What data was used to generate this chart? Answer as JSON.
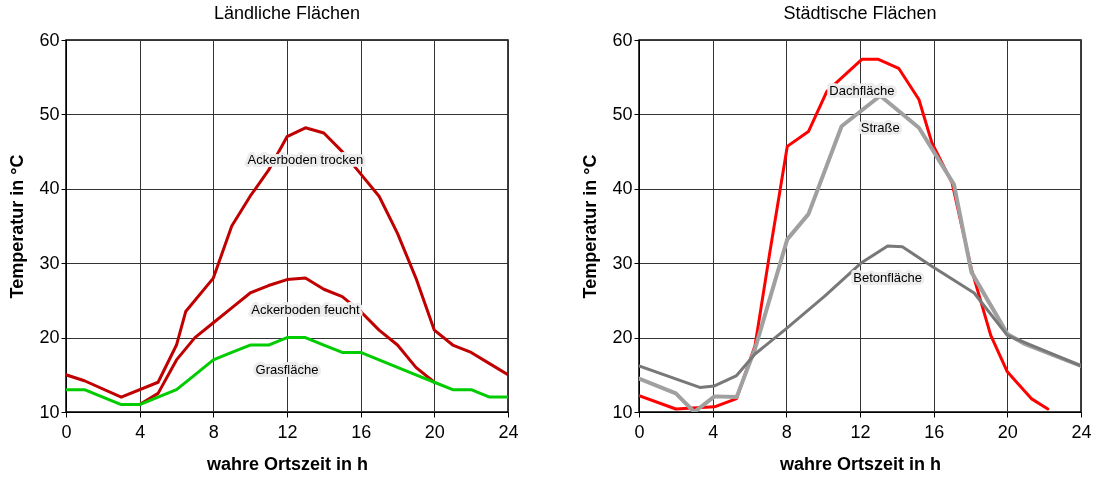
{
  "chart_data": [
    {
      "type": "line",
      "title": "Ländliche Flächen",
      "xlabel": "wahre Ortszeit in h",
      "ylabel": "Temperatur in °C",
      "xlim": [
        0,
        24
      ],
      "ylim": [
        10,
        60
      ],
      "xticks": [
        0,
        4,
        8,
        12,
        16,
        20,
        24
      ],
      "yticks": [
        10,
        20,
        30,
        40,
        50,
        60
      ],
      "grid": true,
      "marker": "none",
      "series": [
        {
          "name": "Ackerboden trocken",
          "color": "#c00000",
          "x": [
            0,
            1,
            3,
            5,
            6,
            6.5,
            8,
            9,
            10,
            11,
            12,
            13,
            14,
            15,
            16,
            17,
            18,
            19,
            20,
            21,
            22,
            23,
            24
          ],
          "values": [
            15,
            14.2,
            12,
            14,
            19,
            23.5,
            28,
            35,
            39,
            42.5,
            47,
            48.2,
            47.5,
            45,
            42,
            39,
            34,
            28,
            21,
            19,
            18,
            16.5,
            15
          ]
        },
        {
          "name": "Ackerboden feucht",
          "color": "#c00000",
          "x": [
            4,
            5,
            6,
            7,
            8,
            9,
            10,
            11,
            12,
            13,
            14,
            15,
            16,
            17,
            18,
            19,
            20
          ],
          "values": [
            11,
            12.5,
            17,
            20,
            22,
            24,
            26,
            27,
            27.8,
            28,
            26.5,
            25.5,
            23.5,
            21,
            19,
            16,
            14
          ]
        },
        {
          "name": "Grasfläche",
          "color": "#00cc00",
          "x": [
            0,
            1,
            3,
            4,
            5,
            6,
            7,
            8,
            9,
            10,
            11,
            12,
            13,
            14,
            15,
            16,
            17,
            18,
            19,
            20,
            21,
            22,
            23,
            24
          ],
          "values": [
            13,
            13,
            11,
            11,
            12,
            13,
            15,
            17,
            18,
            19,
            19,
            20,
            20,
            19,
            18,
            18,
            17,
            16,
            15,
            14,
            13,
            13,
            12,
            12
          ]
        }
      ]
    },
    {
      "type": "line",
      "title": "Städtische Flächen",
      "xlabel": "wahre Ortszeit in h",
      "ylabel": "Temperatur in °C",
      "xlim": [
        0,
        24
      ],
      "ylim": [
        10,
        60
      ],
      "xticks": [
        0,
        4,
        8,
        12,
        16,
        20,
        24
      ],
      "yticks": [
        10,
        20,
        30,
        40,
        50,
        60
      ],
      "grid": true,
      "marker": "none",
      "series": [
        {
          "name": "Dachfläche",
          "color": "#ff0000",
          "x": [
            0,
            2,
            4.1,
            5.3,
            6.3,
            7.1,
            8.05,
            9.2,
            10.2,
            12.1,
            13,
            14.1,
            15.2,
            15.9,
            17,
            18.05,
            19.1,
            20,
            21.3,
            22.2
          ],
          "values": [
            12.2,
            10.4,
            10.7,
            11.8,
            18.9,
            31.4,
            45.7,
            47.7,
            53.1,
            57.4,
            57.4,
            56.2,
            52,
            46.2,
            40.8,
            29.2,
            20.3,
            15.4,
            11.8,
            10.4
          ]
        },
        {
          "name": "Straße",
          "color": "#a0a0a0",
          "x": [
            0,
            2,
            3,
            4.1,
            5.3,
            6.3,
            8.05,
            9.2,
            11,
            13.1,
            15.2,
            17.1,
            18.05,
            20,
            20.9,
            24
          ],
          "values": [
            14.5,
            12.5,
            10,
            12.1,
            12,
            18.5,
            33.2,
            36.6,
            48.4,
            52.5,
            48.2,
            40.6,
            28.8,
            20.5,
            19.2,
            16.2
          ]
        },
        {
          "name": "Betonfläche",
          "color": "#787878",
          "x": [
            0,
            3.3,
            4.1,
            5.3,
            6.3,
            8,
            10.1,
            12.1,
            13.5,
            14.3,
            15.9,
            18.2,
            20,
            24
          ],
          "values": [
            16.2,
            13.3,
            13.5,
            14.9,
            17.8,
            21.2,
            25.6,
            30.1,
            32.3,
            32.2,
            29.6,
            26,
            20.3,
            16.2
          ]
        }
      ]
    }
  ]
}
